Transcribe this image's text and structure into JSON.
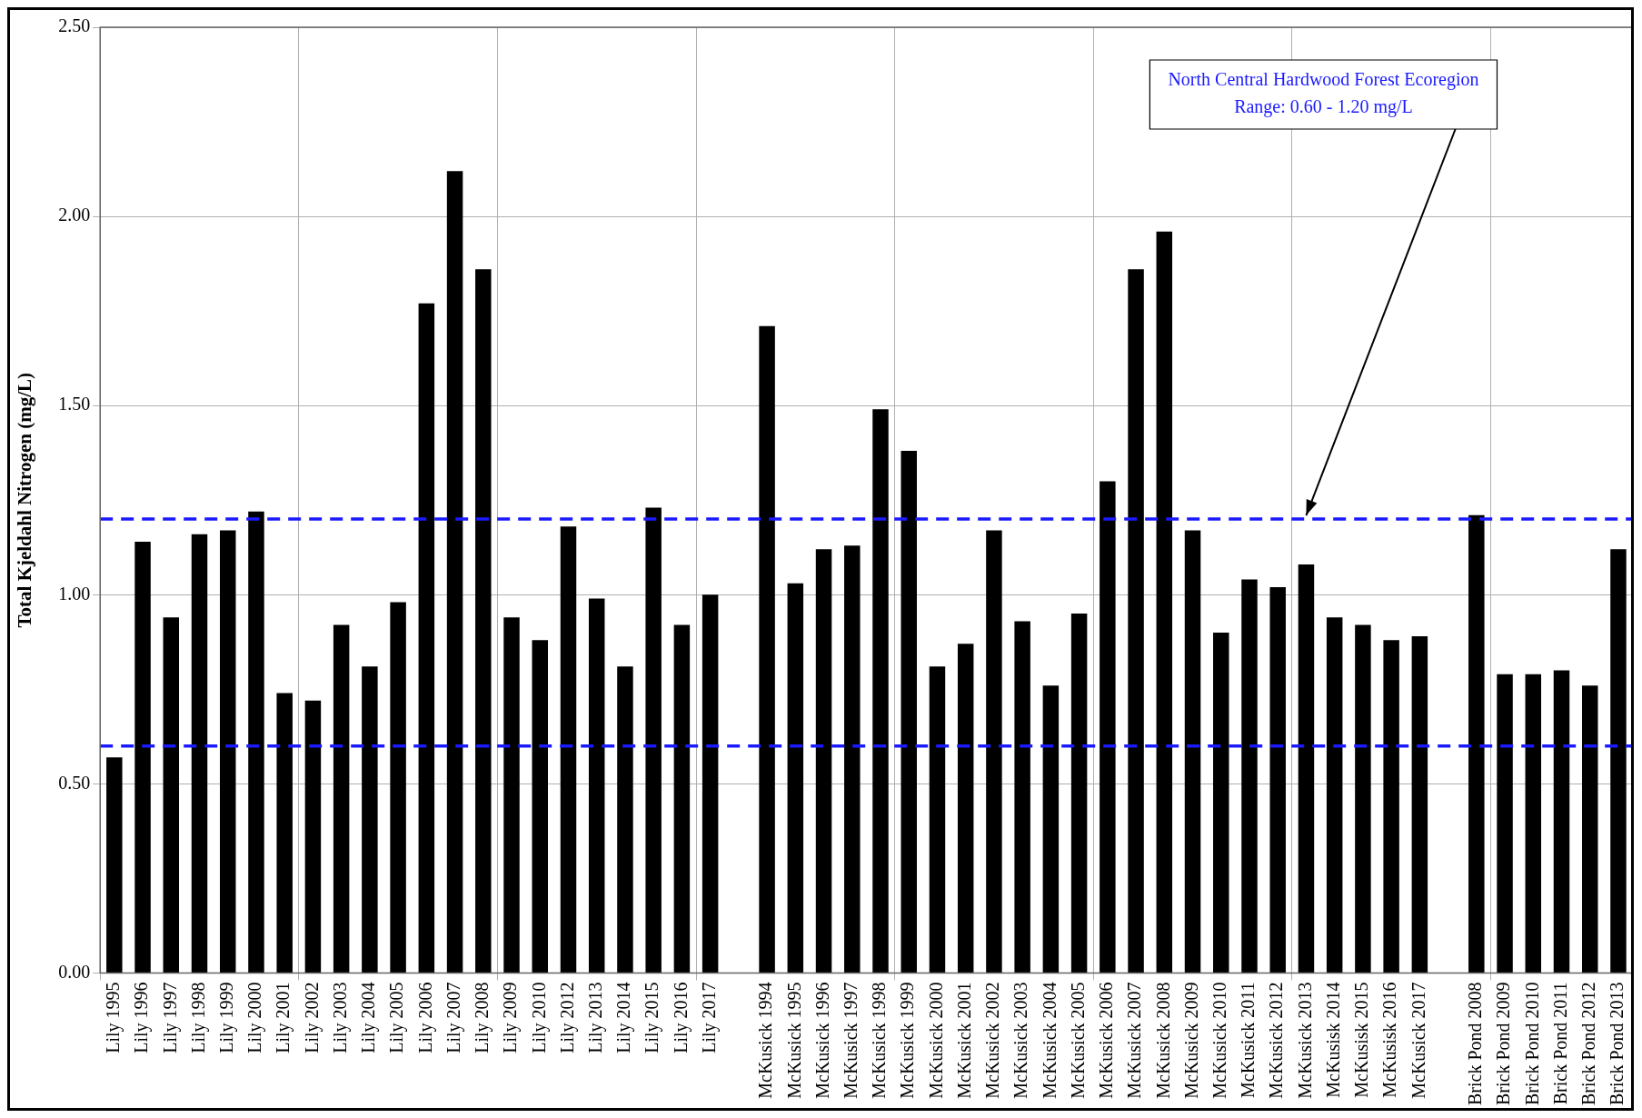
{
  "chart_data": {
    "type": "bar",
    "ylabel": "Total Kjeldahl Nitrogen (mg/L)",
    "categories": [
      "Lily 1995",
      "Lily 1996",
      "Lily 1997",
      "Lily 1998",
      "Lily 1999",
      "Lily 2000",
      "Lily 2001",
      "Lily 2002",
      "Lily 2003",
      "Lily 2004",
      "Lily 2005",
      "Lily 2006",
      "Lily 2007",
      "Lily 2008",
      "Lily 2009",
      "Lily 2010",
      "Lily 2012",
      "Lily 2013",
      "Lily 2014",
      "Lily 2015",
      "Lily 2016",
      "Lily 2017",
      null,
      "McKusick 1994",
      "McKusick 1995",
      "McKusick 1996",
      "McKusick 1997",
      "McKusick 1998",
      "McKusick 1999",
      "McKusick 2000",
      "McKusick 2001",
      "McKusick 2002",
      "McKusick 2003",
      "McKusick 2004",
      "McKusick 2005",
      "McKusick 2006",
      "McKusick 2007",
      "McKusick 2008",
      "McKusick 2009",
      "McKusick 2010",
      "McKusick 2011",
      "McKusick 2012",
      "McKusick 2013",
      "McKusisk 2014",
      "McKusisk 2015",
      "McKusisk 2016",
      "McKusick 2017",
      null,
      "Brick Pond 2008",
      "Brick Pond 2009",
      "Brick Pond 2010",
      "Brick Pond 2011",
      "Brick Pond 2012",
      "Brick Pond 2013"
    ],
    "values": [
      0.57,
      1.14,
      0.94,
      1.16,
      1.17,
      1.22,
      0.74,
      0.72,
      0.92,
      0.81,
      0.98,
      1.77,
      2.12,
      1.86,
      0.94,
      0.88,
      1.18,
      0.99,
      0.81,
      1.23,
      0.92,
      1.0,
      null,
      1.71,
      1.03,
      1.12,
      1.13,
      1.49,
      1.38,
      0.81,
      0.87,
      1.17,
      0.93,
      0.76,
      0.95,
      1.3,
      1.86,
      1.96,
      1.17,
      0.9,
      1.04,
      1.02,
      1.08,
      0.94,
      0.92,
      0.88,
      0.89,
      null,
      1.21,
      0.79,
      0.79,
      0.8,
      0.76,
      1.12
    ],
    "color": "#000000",
    "ylim": [
      0,
      2.5
    ],
    "yticks": [
      {
        "value": 0,
        "label": "0.00"
      },
      {
        "value": 0.5,
        "label": "0.50"
      },
      {
        "value": 1,
        "label": "1.00"
      },
      {
        "value": 1.5,
        "label": "1.50"
      },
      {
        "value": 2,
        "label": "2.00"
      },
      {
        "value": 2.5,
        "label": "2.50"
      }
    ],
    "grid": true,
    "ref_lines": [
      {
        "axis": "y",
        "value": 1.2,
        "color": "#1a1aff",
        "line_style": "dashed"
      },
      {
        "axis": "y",
        "value": 0.6,
        "color": "#1a1aff",
        "line_style": "dashed"
      }
    ],
    "annotations": [
      {
        "text": "North Central Hardwood Forest Ecoregion\nRange: 0.60 - 1.20 mg/L",
        "x": "McKusick 2013",
        "y": 1.2
      }
    ]
  }
}
